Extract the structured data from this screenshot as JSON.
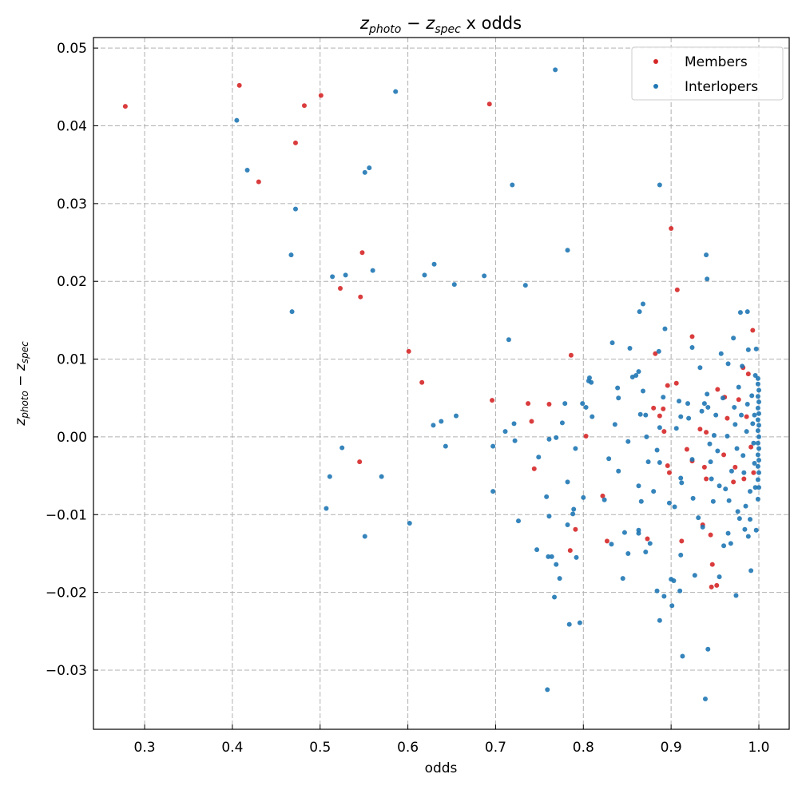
{
  "chart_data": {
    "type": "scatter",
    "title": {
      "z1": "z",
      "sub1": "photo",
      "minus": " − ",
      "z2": "z",
      "sub2": "spec",
      "rest": " x odds"
    },
    "xlabel": "odds",
    "ylabel": {
      "z1": "z",
      "sub1": "photo",
      "minus": " − ",
      "z2": "z",
      "sub2": "spec"
    },
    "xlim": [
      0.2417,
      1.0346
    ],
    "ylim": [
      -0.0376,
      0.05135
    ],
    "xticks": [
      0.3,
      0.4,
      0.5,
      0.6,
      0.7,
      0.8,
      0.9,
      1.0
    ],
    "xtick_labels": [
      "0.3",
      "0.4",
      "0.5",
      "0.6",
      "0.7",
      "0.8",
      "0.9",
      "1.0"
    ],
    "yticks": [
      0.05,
      0.04,
      0.03,
      0.02,
      0.01,
      0.0,
      -0.01,
      -0.02,
      -0.03
    ],
    "ytick_labels": [
      "0.05",
      "0.04",
      "0.03",
      "0.02",
      "0.01",
      "0.00",
      "−0.01",
      "−0.02",
      "−0.03"
    ],
    "grid": true,
    "legend_position": "top-right",
    "series": [
      {
        "name": "Members",
        "color": "#d62728",
        "points": [
          [
            0.278,
            0.0425
          ],
          [
            0.408,
            0.0452
          ],
          [
            0.482,
            0.0426
          ],
          [
            0.501,
            0.0439
          ],
          [
            0.472,
            0.0378
          ],
          [
            0.43,
            0.0328
          ],
          [
            0.693,
            0.0428
          ],
          [
            0.548,
            0.0237
          ],
          [
            0.523,
            0.0191
          ],
          [
            0.546,
            0.018
          ],
          [
            0.601,
            0.011
          ],
          [
            0.616,
            0.007
          ],
          [
            0.9,
            0.0268
          ],
          [
            0.907,
            0.0189
          ],
          [
            0.924,
            0.0129
          ],
          [
            0.786,
            0.0105
          ],
          [
            0.696,
            0.0047
          ],
          [
            0.737,
            0.0043
          ],
          [
            0.741,
            0.002
          ],
          [
            0.761,
            0.0042
          ],
          [
            0.545,
            -0.0032
          ],
          [
            0.744,
            -0.0041
          ],
          [
            0.803,
            0.0001
          ],
          [
            0.822,
            -0.0076
          ],
          [
            0.791,
            -0.0119
          ],
          [
            0.785,
            -0.0146
          ],
          [
            0.827,
            -0.0134
          ],
          [
            0.873,
            -0.0131
          ],
          [
            0.912,
            -0.0134
          ],
          [
            0.947,
            -0.0164
          ],
          [
            0.946,
            -0.0193
          ],
          [
            0.952,
            -0.0191
          ],
          [
            0.945,
            -0.0126
          ],
          [
            0.936,
            -0.0113
          ],
          [
            0.993,
            0.0137
          ],
          [
            0.882,
            0.0107
          ],
          [
            0.896,
            0.0066
          ],
          [
            0.906,
            0.0069
          ],
          [
            0.891,
            0.0036
          ],
          [
            0.887,
            0.0027
          ],
          [
            0.892,
            0.0007
          ],
          [
            0.88,
            0.0037
          ],
          [
            0.896,
            -0.0037
          ],
          [
            0.898,
            -0.0046
          ],
          [
            0.918,
            -0.0016
          ],
          [
            0.933,
            0.001
          ],
          [
            0.94,
            0.0006
          ],
          [
            0.938,
            -0.0039
          ],
          [
            0.924,
            -0.0031
          ],
          [
            0.94,
            -0.0054
          ],
          [
            0.953,
            0.0061
          ],
          [
            0.961,
            0.0051
          ],
          [
            0.964,
            0.0024
          ],
          [
            0.982,
            0.0089
          ],
          [
            0.988,
            0.0081
          ],
          [
            0.977,
            0.0048
          ],
          [
            0.986,
            0.0026
          ],
          [
            0.991,
            -0.0013
          ],
          [
            0.994,
            -0.0046
          ],
          [
            0.983,
            -0.0054
          ],
          [
            0.971,
            -0.0058
          ],
          [
            0.96,
            -0.0023
          ],
          [
            0.973,
            -0.0039
          ]
        ]
      },
      {
        "name": "Interlopers",
        "color": "#1f77b4",
        "points": [
          [
            0.405,
            0.0407
          ],
          [
            0.417,
            0.0343
          ],
          [
            0.472,
            0.0293
          ],
          [
            0.467,
            0.0234
          ],
          [
            0.468,
            0.0161
          ],
          [
            0.514,
            0.0206
          ],
          [
            0.529,
            0.0208
          ],
          [
            0.56,
            0.0214
          ],
          [
            0.551,
            0.034
          ],
          [
            0.556,
            0.0346
          ],
          [
            0.586,
            0.0444
          ],
          [
            0.768,
            0.0472
          ],
          [
            0.719,
            0.0324
          ],
          [
            0.887,
            0.0324
          ],
          [
            0.63,
            0.0222
          ],
          [
            0.619,
            0.0208
          ],
          [
            0.653,
            0.0196
          ],
          [
            0.687,
            0.0207
          ],
          [
            0.734,
            0.0195
          ],
          [
            0.782,
            0.024
          ],
          [
            0.94,
            0.0234
          ],
          [
            0.941,
            0.0203
          ],
          [
            0.715,
            0.0125
          ],
          [
            0.629,
            0.0015
          ],
          [
            0.638,
            0.002
          ],
          [
            0.655,
            0.0027
          ],
          [
            0.525,
            -0.0014
          ],
          [
            0.643,
            -0.0012
          ],
          [
            0.511,
            -0.0051
          ],
          [
            0.57,
            -0.0051
          ],
          [
            0.507,
            -0.0092
          ],
          [
            0.602,
            -0.0111
          ],
          [
            0.551,
            -0.0128
          ],
          [
            0.697,
            -0.0012
          ],
          [
            0.697,
            -0.007
          ],
          [
            0.711,
            0.0007
          ],
          [
            0.721,
            0.0017
          ],
          [
            0.722,
            -0.0005
          ],
          [
            0.726,
            -0.0108
          ],
          [
            0.749,
            -0.0026
          ],
          [
            0.747,
            -0.0145
          ],
          [
            0.758,
            -0.0077
          ],
          [
            0.761,
            -0.0003
          ],
          [
            0.769,
            -0.0001
          ],
          [
            0.761,
            -0.0102
          ],
          [
            0.76,
            -0.0154
          ],
          [
            0.764,
            -0.0154
          ],
          [
            0.769,
            -0.0164
          ],
          [
            0.767,
            -0.0206
          ],
          [
            0.773,
            -0.0182
          ],
          [
            0.776,
            0.0018
          ],
          [
            0.779,
            0.0043
          ],
          [
            0.791,
            -0.0015
          ],
          [
            0.782,
            -0.0058
          ],
          [
            0.789,
            -0.0093
          ],
          [
            0.788,
            -0.0099
          ],
          [
            0.782,
            -0.0113
          ],
          [
            0.792,
            -0.0155
          ],
          [
            0.784,
            -0.0241
          ],
          [
            0.796,
            -0.0239
          ],
          [
            0.759,
            -0.0325
          ],
          [
            0.8,
            -0.0078
          ],
          [
            0.806,
            0.0072
          ],
          [
            0.807,
            0.0076
          ],
          [
            0.803,
            0.0038
          ],
          [
            0.81,
            0.0026
          ],
          [
            0.799,
            0.0043
          ],
          [
            0.809,
            0.007
          ],
          [
            0.824,
            -0.0081
          ],
          [
            0.829,
            -0.0028
          ],
          [
            0.832,
            -0.0138
          ],
          [
            0.833,
            0.0121
          ],
          [
            0.836,
            0.0016
          ],
          [
            0.84,
            0.005
          ],
          [
            0.839,
            0.0063
          ],
          [
            0.84,
            -0.0044
          ],
          [
            0.845,
            -0.0182
          ],
          [
            0.847,
            -0.0123
          ],
          [
            0.851,
            -0.015
          ],
          [
            0.851,
            -0.0006
          ],
          [
            0.853,
            0.0114
          ],
          [
            0.856,
            0.0077
          ],
          [
            0.86,
            0.0079
          ],
          [
            0.863,
            0.0084
          ],
          [
            0.864,
            0.0161
          ],
          [
            0.868,
            0.0171
          ],
          [
            0.868,
            0.0059
          ],
          [
            0.871,
            0.0028
          ],
          [
            0.872,
            0.0
          ],
          [
            0.874,
            -0.0032
          ],
          [
            0.863,
            -0.0063
          ],
          [
            0.866,
            -0.0083
          ],
          [
            0.863,
            -0.012
          ],
          [
            0.863,
            -0.0124
          ],
          [
            0.871,
            -0.0148
          ],
          [
            0.876,
            -0.0137
          ],
          [
            0.865,
            0.0029
          ],
          [
            0.88,
            -0.007
          ],
          [
            0.884,
            -0.0017
          ],
          [
            0.887,
            0.0012
          ],
          [
            0.887,
            -0.0033
          ],
          [
            0.891,
            0.0051
          ],
          [
            0.886,
            0.011
          ],
          [
            0.893,
            0.0139
          ],
          [
            0.884,
            -0.0198
          ],
          [
            0.887,
            -0.0236
          ],
          [
            0.892,
            -0.0205
          ],
          [
            0.898,
            -0.0085
          ],
          [
            0.901,
            -0.0217
          ],
          [
            0.9,
            -0.0183
          ],
          [
            0.903,
            -0.0185
          ],
          [
            0.904,
            -0.009
          ],
          [
            0.906,
            0.0011
          ],
          [
            0.909,
            0.0046
          ],
          [
            0.911,
            0.0026
          ],
          [
            0.911,
            -0.0053
          ],
          [
            0.912,
            -0.0059
          ],
          [
            0.911,
            -0.0152
          ],
          [
            0.91,
            -0.0198
          ],
          [
            0.913,
            -0.0282
          ],
          [
            0.919,
            0.0043
          ],
          [
            0.92,
            0.0024
          ],
          [
            0.924,
            0.0115
          ],
          [
            0.924,
            -0.0029
          ],
          [
            0.925,
            -0.0079
          ],
          [
            0.927,
            -0.0178
          ],
          [
            0.931,
            -0.0104
          ],
          [
            0.933,
            0.0089
          ],
          [
            0.935,
            0.0033
          ],
          [
            0.936,
            -0.0116
          ],
          [
            0.938,
            0.0043
          ],
          [
            0.941,
            0.0055
          ],
          [
            0.942,
            0.0038
          ],
          [
            0.942,
            -0.0273
          ],
          [
            0.939,
            -0.0337
          ],
          [
            0.944,
            -0.0009
          ],
          [
            0.945,
            -0.0032
          ],
          [
            0.946,
            -0.0054
          ],
          [
            0.948,
            -0.0083
          ],
          [
            0.949,
            0.0002
          ],
          [
            0.951,
            0.0028
          ],
          [
            0.953,
            -0.0018
          ],
          [
            0.955,
            -0.0063
          ],
          [
            0.955,
            -0.018
          ],
          [
            0.957,
            0.0107
          ],
          [
            0.959,
            0.005
          ],
          [
            0.96,
            -0.014
          ],
          [
            0.962,
            -0.0067
          ],
          [
            0.964,
            0.0001
          ],
          [
            0.965,
            -0.0124
          ],
          [
            0.965,
            0.0094
          ],
          [
            0.966,
            -0.0082
          ],
          [
            0.968,
            -0.0137
          ],
          [
            0.969,
            -0.0044
          ],
          [
            0.971,
            0.0127
          ],
          [
            0.972,
            0.0038
          ],
          [
            0.973,
            0.0016
          ],
          [
            0.974,
            -0.0204
          ],
          [
            0.975,
            -0.0015
          ],
          [
            0.976,
            -0.0096
          ],
          [
            0.977,
            0.0064
          ],
          [
            0.978,
            -0.0105
          ],
          [
            0.979,
            0.016
          ],
          [
            0.98,
            0.0028
          ],
          [
            0.981,
            0.0091
          ],
          [
            0.982,
            -0.0024
          ],
          [
            0.983,
            -0.0046
          ],
          [
            0.984,
            -0.0119
          ],
          [
            0.985,
            -0.0089
          ],
          [
            0.986,
            0.0007
          ],
          [
            0.987,
            0.0161
          ],
          [
            0.987,
            0.0042
          ],
          [
            0.988,
            -0.0128
          ],
          [
            0.988,
            0.0112
          ],
          [
            0.99,
            -0.007
          ],
          [
            0.99,
            -0.0106
          ],
          [
            0.991,
            -0.0172
          ],
          [
            0.992,
            0.0053
          ],
          [
            0.993,
            0.0017
          ],
          [
            0.994,
            -0.0008
          ],
          [
            0.995,
            -0.0034
          ],
          [
            0.995,
            0.0028
          ],
          [
            0.996,
            0.0079
          ],
          [
            0.996,
            -0.0065
          ],
          [
            0.997,
            0.0113
          ],
          [
            0.997,
            -0.012
          ],
          [
            0.999,
            0.0075
          ],
          [
            0.999,
            0.0068
          ],
          [
            1.0,
            0.006
          ],
          [
            0.999,
            0.0052
          ],
          [
            1.0,
            0.0045
          ],
          [
            0.999,
            0.0037
          ],
          [
            1.0,
            0.003
          ],
          [
            0.999,
            0.0022
          ],
          [
            1.0,
            0.0015
          ],
          [
            0.999,
            0.0008
          ],
          [
            1.0,
            0.0
          ],
          [
            0.999,
            -0.0008
          ],
          [
            1.0,
            -0.0015
          ],
          [
            0.999,
            -0.0023
          ],
          [
            1.0,
            -0.003
          ],
          [
            0.999,
            -0.0038
          ],
          [
            1.0,
            -0.0046
          ],
          [
            0.999,
            -0.0055
          ],
          [
            1.0,
            -0.0065
          ],
          [
            0.999,
            -0.008
          ]
        ]
      }
    ]
  }
}
